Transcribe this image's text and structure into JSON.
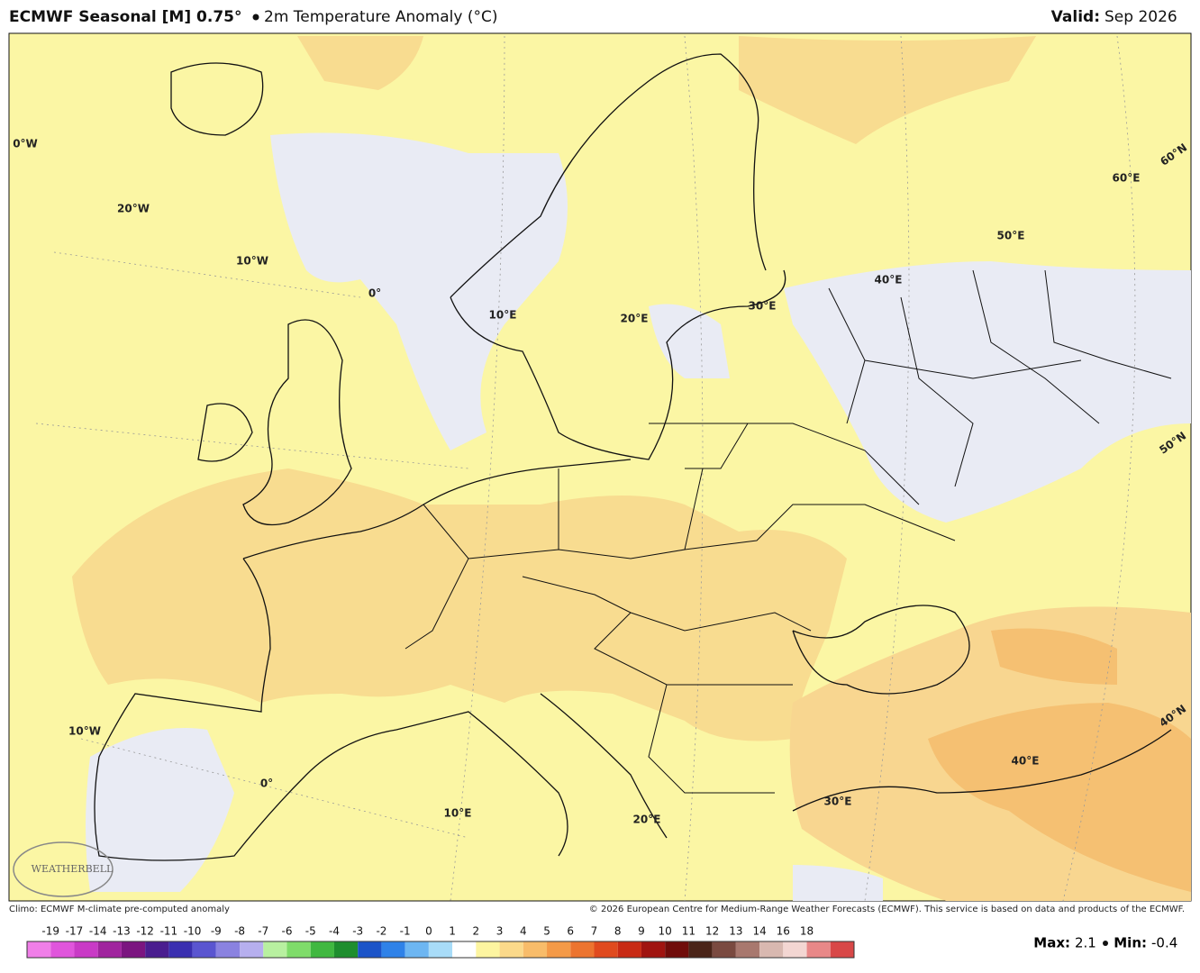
{
  "header": {
    "title": "ECMWF Seasonal [M] 0.75°",
    "subtitle": "2m Temperature Anomaly (°C)",
    "valid_label": "Valid:",
    "valid_value": "Sep 2026"
  },
  "map": {
    "grid_labels": [
      "0°W",
      "20°W",
      "10°W",
      "0°",
      "10°E",
      "20°E",
      "30°E",
      "40°E",
      "50°E",
      "60°E",
      "60°N",
      "50°N",
      "40°N",
      "10°W",
      "0°",
      "10°E",
      "20°E",
      "30°E",
      "40°E"
    ],
    "watermark": "WEATHERBELL"
  },
  "footer": {
    "climo": "Climo: ECMWF M-climate pre-computed anomaly",
    "copyright": "© 2026 European Centre for Medium-Range Weather Forecasts (ECMWF). This service is based on data and products of the ECMWF."
  },
  "colorbar": {
    "labels": [
      "-19",
      "-17",
      "-14",
      "-13",
      "-12",
      "-11",
      "-10",
      "-9",
      "-8",
      "-7",
      "-6",
      "-5",
      "-4",
      "-3",
      "-2",
      "-1",
      "0",
      "1",
      "2",
      "3",
      "4",
      "5",
      "6",
      "7",
      "8",
      "9",
      "10",
      "11",
      "12",
      "13",
      "14",
      "16",
      "18"
    ],
    "colors": [
      "#f07ee8",
      "#e055dc",
      "#c93ac6",
      "#a0249e",
      "#7b1580",
      "#4a1d8f",
      "#3a2fb0",
      "#5a55d0",
      "#8a82e0",
      "#b6afee",
      "#b8f0a0",
      "#7fdc6a",
      "#40b840",
      "#1e8e2e",
      "#1c54c8",
      "#2f82e8",
      "#6db6f2",
      "#a8dcf8",
      "#ffffff",
      "#fdf5a0",
      "#fbd98a",
      "#f8bc6a",
      "#f49a48",
      "#ec7430",
      "#e04a1e",
      "#c82a14",
      "#a01410",
      "#700c0a",
      "#4a2418",
      "#7a4a40",
      "#a8786e",
      "#d8b8b0",
      "#f3d6d2",
      "#e88888",
      "#d84848"
    ]
  },
  "stats": {
    "max_label": "Max:",
    "max_value": "2.1",
    "min_label": "Min:",
    "min_value": "-0.4"
  }
}
